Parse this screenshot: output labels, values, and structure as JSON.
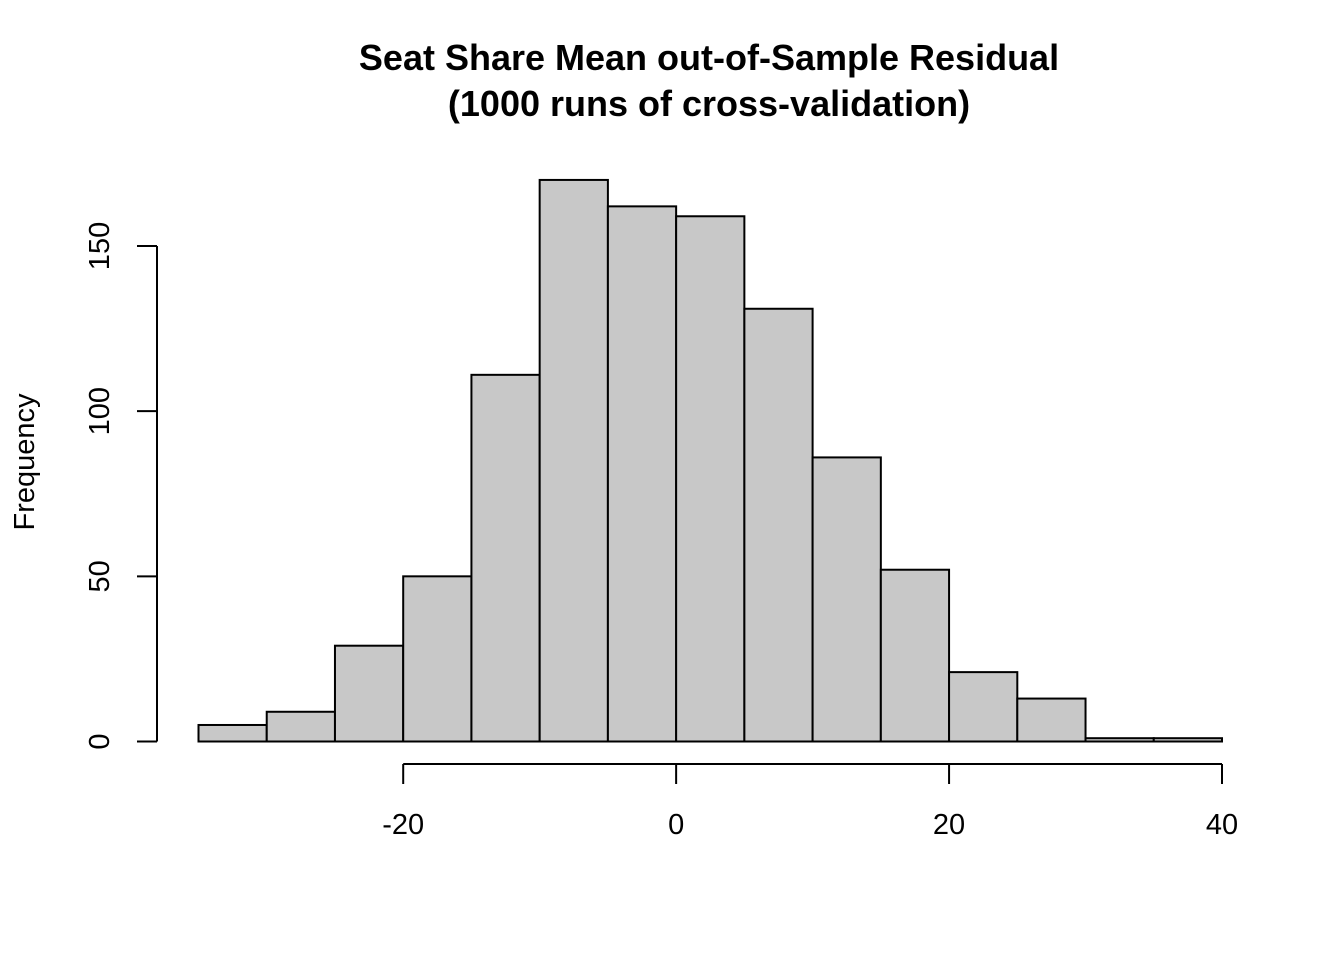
{
  "chart_data": {
    "type": "bar",
    "title": "Seat Share Mean out-of-Sample Residual",
    "subtitle": "(1000 runs of cross-validation)",
    "xlabel": "",
    "ylabel": "Frequency",
    "bins": [
      {
        "from": -35,
        "to": -30,
        "count": 5
      },
      {
        "from": -30,
        "to": -25,
        "count": 9
      },
      {
        "from": -25,
        "to": -20,
        "count": 29
      },
      {
        "from": -20,
        "to": -15,
        "count": 50
      },
      {
        "from": -15,
        "to": -10,
        "count": 111
      },
      {
        "from": -10,
        "to": -5,
        "count": 170
      },
      {
        "from": -5,
        "to": 0,
        "count": 162
      },
      {
        "from": 0,
        "to": 5,
        "count": 159
      },
      {
        "from": 5,
        "to": 10,
        "count": 131
      },
      {
        "from": 10,
        "to": 15,
        "count": 86
      },
      {
        "from": 15,
        "to": 20,
        "count": 52
      },
      {
        "from": 20,
        "to": 25,
        "count": 21
      },
      {
        "from": 25,
        "to": 30,
        "count": 13
      },
      {
        "from": 30,
        "to": 35,
        "count": 1
      },
      {
        "from": 35,
        "to": 40,
        "count": 1
      }
    ],
    "x_ticks": [
      -20,
      0,
      20,
      40
    ],
    "x_tick_labels": [
      "-20",
      "0",
      "20",
      "40"
    ],
    "y_ticks": [
      0,
      50,
      100,
      150
    ],
    "y_tick_labels": [
      "0",
      "50",
      "100",
      "150"
    ],
    "xlim": [
      -35,
      40
    ],
    "ylim": [
      0,
      170
    ],
    "grid": false,
    "legend": "none",
    "colors": {
      "bar_fill": "#c8c8c8",
      "bar_stroke": "#000000"
    }
  }
}
